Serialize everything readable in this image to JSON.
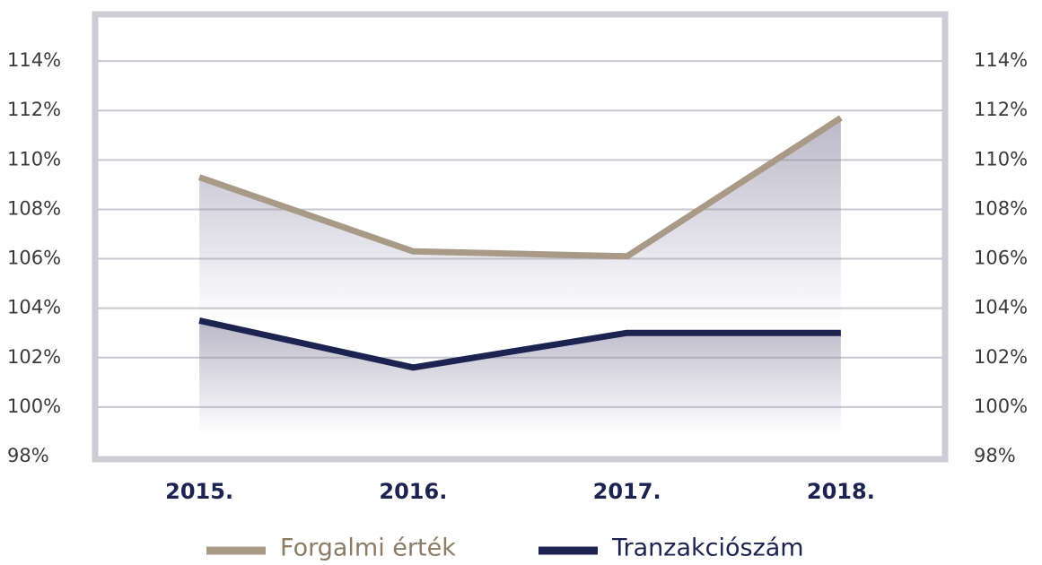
{
  "chart_data": {
    "type": "line",
    "categories": [
      "2015.",
      "2016.",
      "2017.",
      "2018."
    ],
    "series": [
      {
        "name": "Forgalmi érték",
        "color": "#a89a86",
        "values": [
          109.3,
          106.3,
          106.1,
          111.7
        ]
      },
      {
        "name": "Tranzakciószám",
        "color": "#1c2350",
        "values": [
          103.5,
          101.6,
          103.0,
          103.0
        ]
      }
    ],
    "ylim": [
      98,
      116
    ],
    "yticks": [
      {
        "value": 98,
        "label": "98%"
      },
      {
        "value": 100,
        "label": "100%"
      },
      {
        "value": 102,
        "label": "102%"
      },
      {
        "value": 104,
        "label": "104%"
      },
      {
        "value": 106,
        "label": "106%"
      },
      {
        "value": 108,
        "label": "108%"
      },
      {
        "value": 110,
        "label": "110%"
      },
      {
        "value": 112,
        "label": "112%"
      },
      {
        "value": 114,
        "label": "114%"
      }
    ],
    "y2lim": [
      98,
      116
    ],
    "y2ticks": [
      {
        "value": 98,
        "label": "98%"
      },
      {
        "value": 100,
        "label": "100%"
      },
      {
        "value": 102,
        "label": "102%"
      },
      {
        "value": 104,
        "label": "104%"
      },
      {
        "value": 106,
        "label": "106%"
      },
      {
        "value": 108,
        "label": "108%"
      },
      {
        "value": 110,
        "label": "110%"
      },
      {
        "value": 112,
        "label": "112%"
      },
      {
        "value": 114,
        "label": "114%"
      }
    ],
    "grid": true,
    "legend": "bottom"
  }
}
